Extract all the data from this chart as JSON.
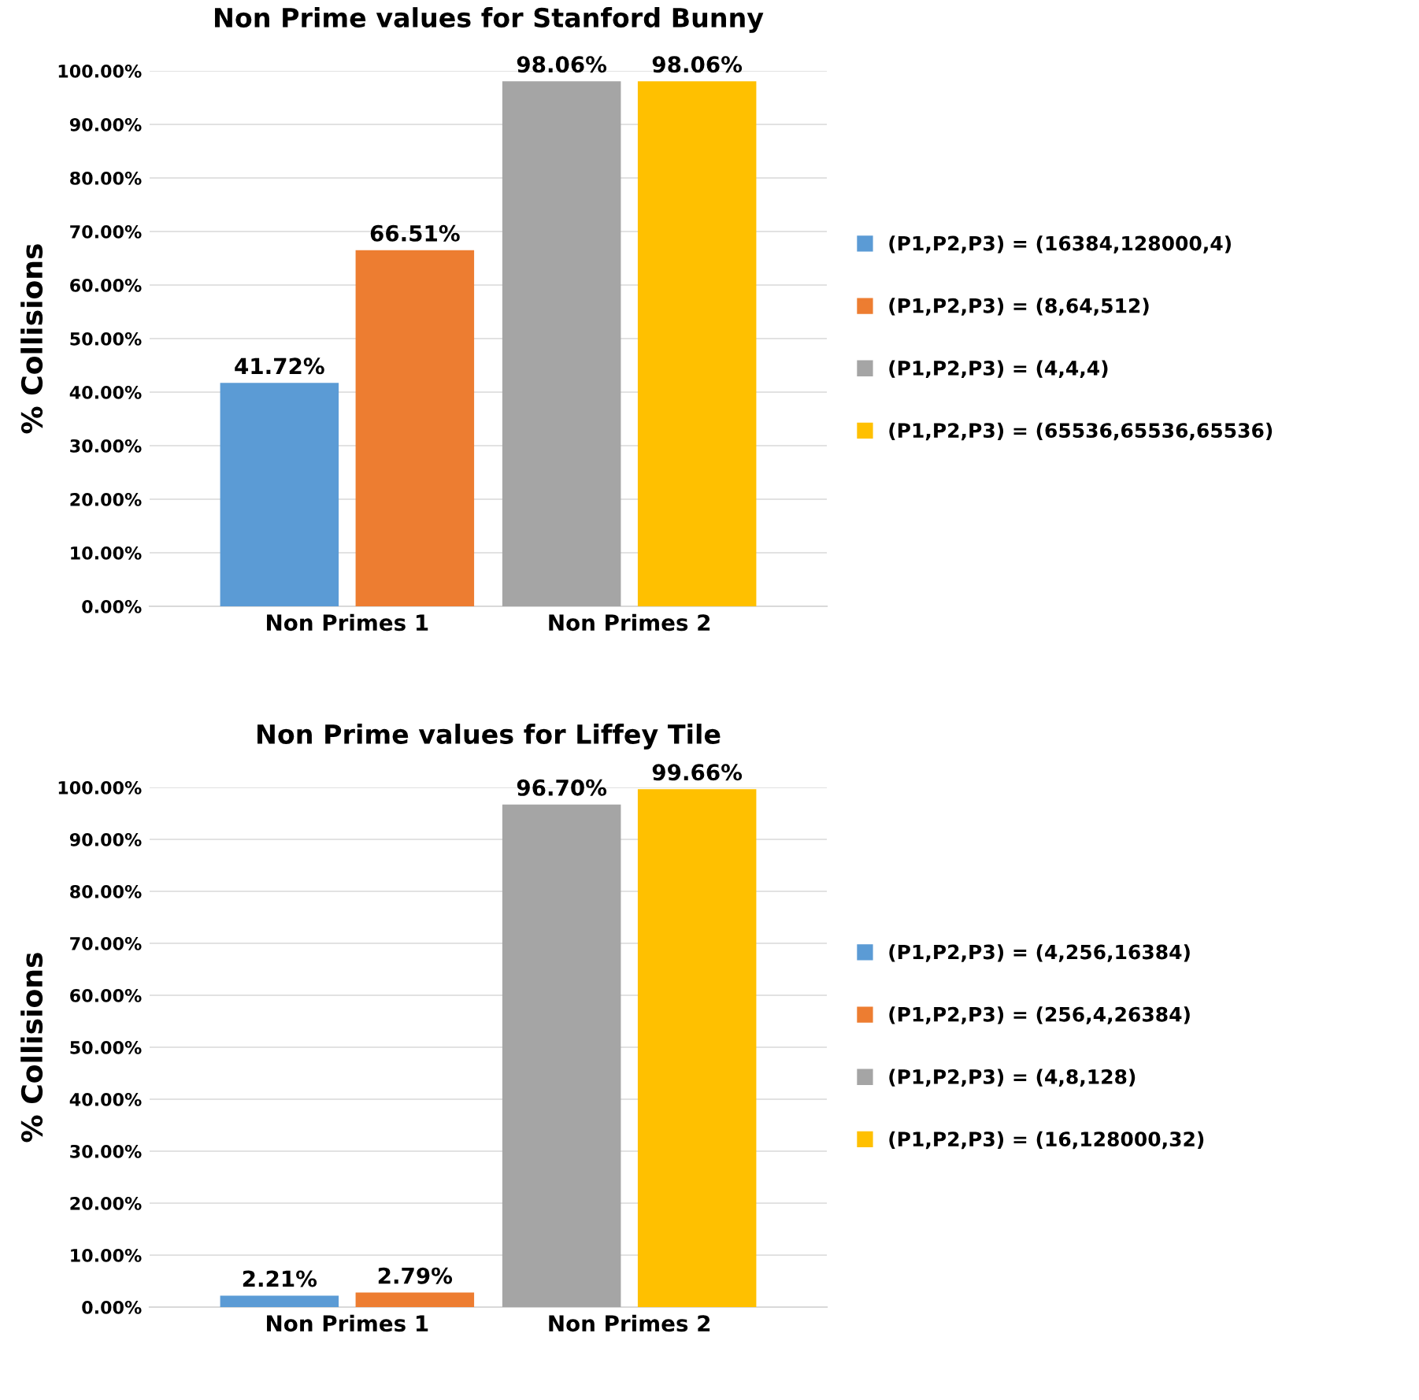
{
  "chart_data": [
    {
      "type": "bar",
      "title": "Non Prime values for Stanford Bunny",
      "ylabel": "% Collisions",
      "categories": [
        "Non Primes 1",
        "Non Primes 2"
      ],
      "series": [
        {
          "name": "(P1,P2,P3) = (16384,128000,4)",
          "color": "#5b9bd5",
          "values": [
            41.72,
            null
          ],
          "value_labels": [
            "41.72%",
            null
          ]
        },
        {
          "name": "(P1,P2,P3) = (8,64,512)",
          "color": "#ed7d31",
          "values": [
            66.51,
            null
          ],
          "value_labels": [
            "66.51%",
            null
          ]
        },
        {
          "name": "(P1,P2,P3) = (4,4,4)",
          "color": "#a5a5a5",
          "values": [
            null,
            98.06
          ],
          "value_labels": [
            null,
            "98.06%"
          ]
        },
        {
          "name": "(P1,P2,P3) = (65536,65536,65536)",
          "color": "#ffc000",
          "values": [
            null,
            98.06
          ],
          "value_labels": [
            null,
            "98.06%"
          ]
        }
      ],
      "ylim": [
        0,
        100
      ],
      "yticks": [
        {
          "value": 0,
          "label": "0.00%"
        },
        {
          "value": 10,
          "label": "10.00%"
        },
        {
          "value": 20,
          "label": "20.00%"
        },
        {
          "value": 30,
          "label": "30.00%"
        },
        {
          "value": 40,
          "label": "40.00%"
        },
        {
          "value": 50,
          "label": "50.00%"
        },
        {
          "value": 60,
          "label": "60.00%"
        },
        {
          "value": 70,
          "label": "70.00%"
        },
        {
          "value": 80,
          "label": "80.00%"
        },
        {
          "value": 90,
          "label": "90.00%"
        },
        {
          "value": 100,
          "label": "100.00%"
        }
      ],
      "grid": "y",
      "legend": "right"
    },
    {
      "type": "bar",
      "title": "Non Prime values for Liffey Tile",
      "ylabel": "% Collisions",
      "categories": [
        "Non Primes 1",
        "Non Primes 2"
      ],
      "series": [
        {
          "name": "(P1,P2,P3) = (4,256,16384)",
          "color": "#5b9bd5",
          "values": [
            2.21,
            null
          ],
          "value_labels": [
            "2.21%",
            null
          ]
        },
        {
          "name": "(P1,P2,P3) = (256,4,26384)",
          "color": "#ed7d31",
          "values": [
            2.79,
            null
          ],
          "value_labels": [
            "2.79%",
            null
          ]
        },
        {
          "name": "(P1,P2,P3) = (4,8,128)",
          "color": "#a5a5a5",
          "values": [
            null,
            96.7
          ],
          "value_labels": [
            null,
            "96.70%"
          ]
        },
        {
          "name": "(P1,P2,P3) = (16,128000,32)",
          "color": "#ffc000",
          "values": [
            null,
            99.66
          ],
          "value_labels": [
            null,
            "99.66%"
          ]
        }
      ],
      "ylim": [
        0,
        100
      ],
      "yticks": [
        {
          "value": 0,
          "label": "0.00%"
        },
        {
          "value": 10,
          "label": "10.00%"
        },
        {
          "value": 20,
          "label": "20.00%"
        },
        {
          "value": 30,
          "label": "30.00%"
        },
        {
          "value": 40,
          "label": "40.00%"
        },
        {
          "value": 50,
          "label": "50.00%"
        },
        {
          "value": 60,
          "label": "60.00%"
        },
        {
          "value": 70,
          "label": "70.00%"
        },
        {
          "value": 80,
          "label": "80.00%"
        },
        {
          "value": 90,
          "label": "90.00%"
        },
        {
          "value": 100,
          "label": "100.00%"
        }
      ],
      "grid": "y",
      "legend": "right"
    }
  ]
}
